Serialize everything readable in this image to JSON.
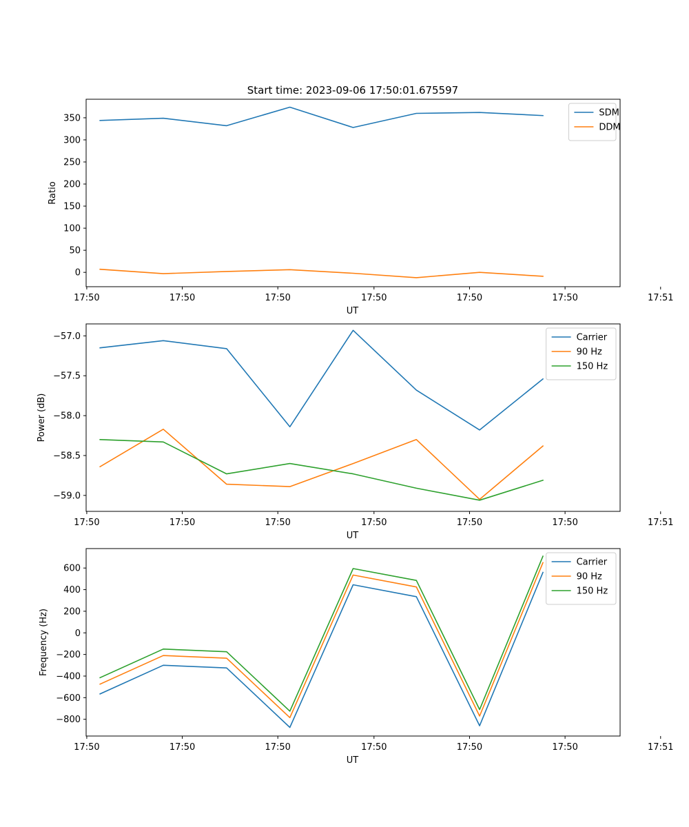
{
  "figure_title": "Start time: 2023-09-06 17:50:01.675597",
  "chart_data": [
    {
      "type": "line",
      "title": "Start time: 2023-09-06 17:50:01.675597",
      "xlabel": "UT",
      "ylabel": "Ratio",
      "x": [
        1,
        2,
        3,
        4,
        5,
        6,
        7,
        8
      ],
      "xlim": [
        0.78,
        9.22
      ],
      "x_ticks": [
        0.79,
        2.3,
        3.81,
        5.33,
        6.84,
        8.35,
        9.86
      ],
      "x_tick_labels": [
        "17:50",
        "17:50",
        "17:50",
        "17:50",
        "17:50",
        "17:50",
        "17:51"
      ],
      "ylim": [
        -32.5,
        392
      ],
      "y_ticks": [
        0,
        50,
        100,
        150,
        200,
        250,
        300,
        350
      ],
      "y_tick_labels": [
        "0",
        "50",
        "100",
        "150",
        "200",
        "250",
        "300",
        "350"
      ],
      "legend_position": "top-right",
      "series": [
        {
          "name": "SDM",
          "color": "#1f77b4",
          "values": [
            344,
            349,
            332,
            374,
            328,
            360,
            362,
            355
          ]
        },
        {
          "name": "DDM",
          "color": "#ff7f0e",
          "values": [
            7,
            -3,
            2,
            6,
            -2,
            -12,
            0,
            -9
          ]
        }
      ]
    },
    {
      "type": "line",
      "title": "",
      "xlabel": "UT",
      "ylabel": "Power (dB)",
      "x": [
        1,
        2,
        3,
        4,
        5,
        6,
        7,
        8
      ],
      "xlim": [
        0.78,
        9.22
      ],
      "x_ticks": [
        0.79,
        2.3,
        3.81,
        5.33,
        6.84,
        8.35,
        9.86
      ],
      "x_tick_labels": [
        "17:50",
        "17:50",
        "17:50",
        "17:50",
        "17:50",
        "17:50",
        "17:51"
      ],
      "ylim": [
        -59.2,
        -56.85
      ],
      "y_ticks": [
        -59.0,
        -58.5,
        -58.0,
        -57.5,
        -57.0
      ],
      "y_tick_labels": [
        "−59.0",
        "−58.5",
        "−58.0",
        "−57.5",
        "−57.0"
      ],
      "legend_position": "top-right",
      "series": [
        {
          "name": "Carrier",
          "color": "#1f77b4",
          "values": [
            -57.15,
            -57.06,
            -57.16,
            -58.14,
            -56.93,
            -57.68,
            -58.18,
            -57.54
          ]
        },
        {
          "name": "90 Hz",
          "color": "#ff7f0e",
          "values": [
            -58.64,
            -58.17,
            -58.86,
            -58.89,
            -58.6,
            -58.3,
            -59.05,
            -58.38
          ]
        },
        {
          "name": "150 Hz",
          "color": "#2ca02c",
          "values": [
            -58.3,
            -58.33,
            -58.73,
            -58.6,
            -58.73,
            -58.91,
            -59.06,
            -58.81
          ]
        }
      ]
    },
    {
      "type": "line",
      "title": "",
      "xlabel": "UT",
      "ylabel": "Frequency (Hz)",
      "x": [
        1,
        2,
        3,
        4,
        5,
        6,
        7,
        8
      ],
      "xlim": [
        0.78,
        9.22
      ],
      "x_ticks": [
        0.79,
        2.3,
        3.81,
        5.33,
        6.84,
        8.35,
        9.86
      ],
      "x_tick_labels": [
        "17:50",
        "17:50",
        "17:50",
        "17:50",
        "17:50",
        "17:50",
        "17:51"
      ],
      "ylim": [
        -955,
        780
      ],
      "y_ticks": [
        -800,
        -600,
        -400,
        -200,
        0,
        200,
        400,
        600
      ],
      "y_tick_labels": [
        "−800",
        "−600",
        "−400",
        "−200",
        "0",
        "200",
        "400",
        "600"
      ],
      "legend_position": "top-right",
      "series": [
        {
          "name": "Carrier",
          "color": "#1f77b4",
          "values": [
            -565,
            -300,
            -325,
            -875,
            445,
            335,
            -860,
            560
          ]
        },
        {
          "name": "90 Hz",
          "color": "#ff7f0e",
          "values": [
            -475,
            -210,
            -235,
            -785,
            535,
            425,
            -770,
            650
          ]
        },
        {
          "name": "150 Hz",
          "color": "#2ca02c",
          "values": [
            -415,
            -150,
            -175,
            -725,
            595,
            485,
            -710,
            710
          ]
        }
      ]
    }
  ]
}
